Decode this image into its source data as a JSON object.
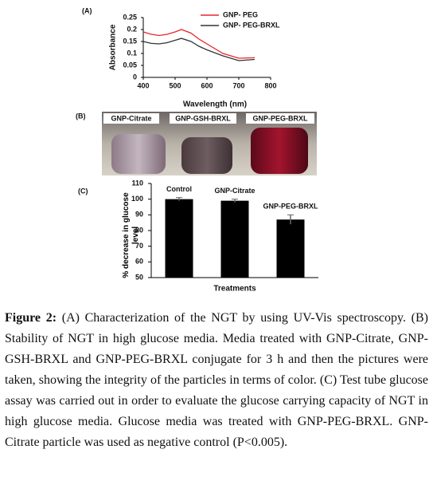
{
  "chart_data": [
    {
      "type": "line",
      "panel_label": "(A)",
      "x_label": "Wavelength (nm)",
      "y_label": "Absorbance",
      "x": [
        400,
        425,
        450,
        475,
        500,
        520,
        550,
        575,
        600,
        650,
        700,
        750
      ],
      "series": [
        {
          "name": "GNP- PEG",
          "color": "#e8262b",
          "values": [
            0.19,
            0.18,
            0.175,
            0.18,
            0.19,
            0.2,
            0.185,
            0.16,
            0.14,
            0.1,
            0.08,
            0.082
          ]
        },
        {
          "name": "GNP- PEG-BRXL",
          "color": "#333333",
          "values": [
            0.15,
            0.142,
            0.14,
            0.145,
            0.155,
            0.163,
            0.15,
            0.13,
            0.115,
            0.09,
            0.07,
            0.075
          ]
        }
      ],
      "xlim": [
        400,
        800
      ],
      "xticks": [
        400,
        500,
        600,
        700,
        800
      ],
      "ylim": [
        0,
        0.25
      ],
      "yticks": [
        0,
        0.05,
        0.1,
        0.15,
        0.2,
        0.25
      ],
      "legend": "upper right"
    },
    {
      "type": "bar",
      "panel_label": "(C)",
      "x_label": "Treatments",
      "y_label": "% decrease in glucose level",
      "categories": [
        "Control",
        "GNP-Citrate",
        "GNP-PEG-BRXL"
      ],
      "values": [
        100,
        99,
        87
      ],
      "errors": [
        1,
        1,
        3
      ],
      "color": "#000000",
      "ylim": [
        50,
        110
      ],
      "yticks": [
        50,
        60,
        70,
        80,
        90,
        100,
        110
      ]
    }
  ],
  "panel_b": {
    "label": "(B)",
    "tubes": [
      "GNP-Citrate",
      "GNP-GSH-BRXL",
      "GNP-PEG-BRXL"
    ]
  },
  "caption": {
    "label": "Figure 2:",
    "text": "(A) Characterization of the NGT by using UV-Vis spectroscopy. (B) Stability of NGT in high glucose media. Media treated with GNP-Citrate, GNP-GSH-BRXL and GNP-PEG-BRXL conjugate for 3 h and then the pictures were taken, showing the integrity of the particles in terms of color. (C) Test tube glucose assay was carried out in order to evaluate the glucose carrying capacity of NGT in high glucose media. Glucose media was treated with GNP-PEG-BRXL. GNP-Citrate particle was used as negative control (P<0.005)."
  }
}
